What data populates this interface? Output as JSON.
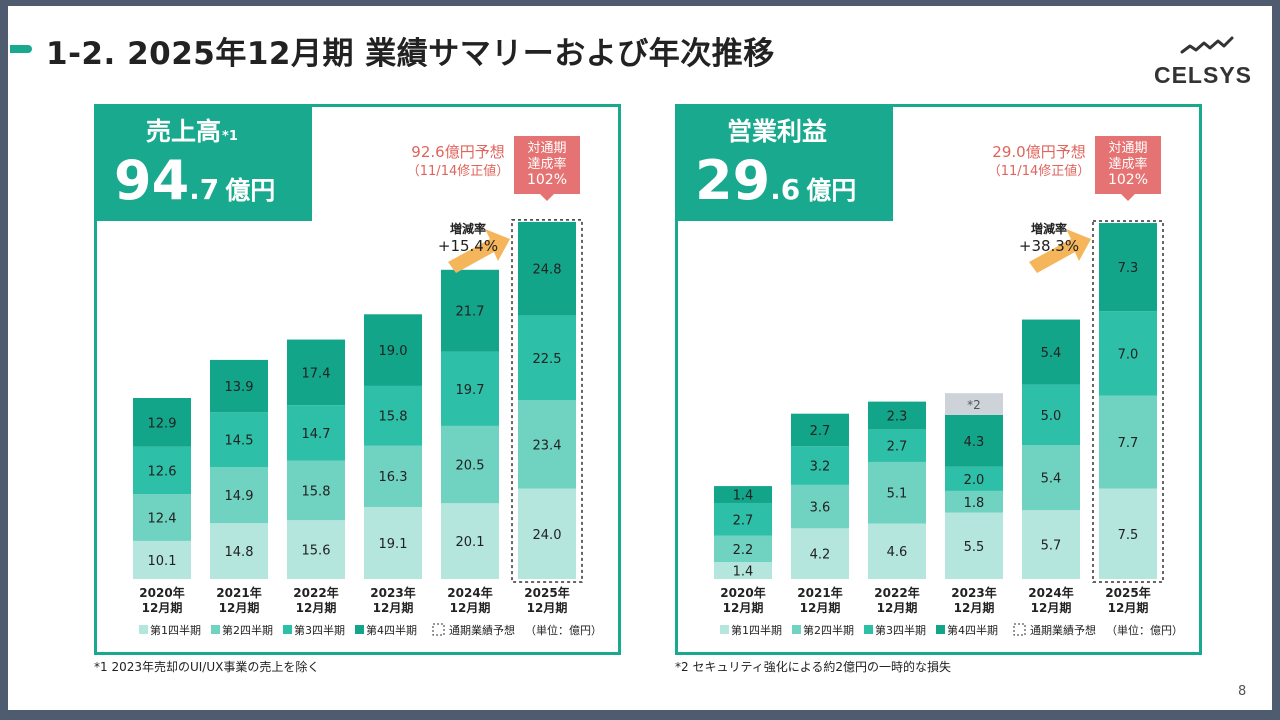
{
  "page": {
    "title": "1-2. 2025年12月期  業績サマリーおよび年次推移",
    "logo_text": "CELSYS",
    "page_number": "8"
  },
  "colors": {
    "q1": "#b4e6de",
    "q2": "#70d2c1",
    "q3": "#2dbfa7",
    "q4": "#13a58a",
    "accent": "#19a98e",
    "forecast_text": "#e0645c",
    "badge": "#e57373",
    "arrow": "#f5b55b",
    "onetime": "#cdd3d8"
  },
  "sales": {
    "kpi_label": "売上高",
    "kpi_note_mark": "*1",
    "kpi_int": "94",
    "kpi_dec": ".7",
    "kpi_unit": "億円",
    "forecast_line1": "92.6億円予想",
    "forecast_line2": "（11/14修正値）",
    "badge": [
      "対通期",
      "達成率",
      "102%"
    ],
    "growth_label": "増減率",
    "growth_value": "+15.4%",
    "footnote": "*1 2023年売却のUI/UX事業の売上を除く"
  },
  "op": {
    "kpi_label": "営業利益",
    "kpi_int": "29",
    "kpi_dec": ".6",
    "kpi_unit": "億円",
    "forecast_line1": "29.0億円予想",
    "forecast_line2": "（11/14修正値）",
    "badge": [
      "対通期",
      "達成率",
      "102%"
    ],
    "growth_label": "増減率",
    "growth_value": "+38.3%",
    "onetime_label": "*2",
    "footnote": "*2 セキュリティ強化による約2億円の一時的な損失"
  },
  "legend": {
    "items": [
      "第1四半期",
      "第2四半期",
      "第3四半期",
      "第4四半期"
    ],
    "forecast": "通期業績予想",
    "unit": "（単位：億円）"
  },
  "chart_data": [
    {
      "type": "bar",
      "stacked": true,
      "title": "売上高",
      "categories": [
        "2020年\n12月期",
        "2021年\n12月期",
        "2022年\n12月期",
        "2023年\n12月期",
        "2024年\n12月期",
        "2025年\n12月期"
      ],
      "series": [
        {
          "name": "第1四半期",
          "values": [
            10.1,
            14.8,
            15.6,
            19.1,
            20.1,
            24.0
          ]
        },
        {
          "name": "第2四半期",
          "values": [
            12.4,
            14.9,
            15.8,
            16.3,
            20.5,
            23.4
          ]
        },
        {
          "name": "第3四半期",
          "values": [
            12.6,
            14.5,
            14.7,
            15.8,
            19.7,
            22.5
          ]
        },
        {
          "name": "第4四半期",
          "values": [
            12.9,
            13.9,
            17.4,
            19.0,
            21.7,
            24.8
          ]
        }
      ],
      "forecast": 92.6,
      "ymax": 96
    },
    {
      "type": "bar",
      "stacked": true,
      "title": "営業利益",
      "categories": [
        "2020年\n12月期",
        "2021年\n12月期",
        "2022年\n12月期",
        "2023年\n12月期",
        "2024年\n12月期",
        "2025年\n12月期"
      ],
      "series": [
        {
          "name": "第1四半期",
          "values": [
            1.4,
            4.2,
            4.6,
            5.5,
            5.7,
            7.5
          ]
        },
        {
          "name": "第2四半期",
          "values": [
            2.2,
            3.6,
            5.1,
            1.8,
            5.4,
            7.7
          ]
        },
        {
          "name": "第3四半期",
          "values": [
            2.7,
            3.2,
            2.7,
            2.0,
            5.0,
            7.0
          ]
        },
        {
          "name": "第4四半期",
          "values": [
            1.4,
            2.7,
            2.3,
            4.3,
            5.4,
            7.3
          ]
        }
      ],
      "one_time_loss": {
        "category_index": 3,
        "value": 1.8,
        "label": "*2"
      },
      "forecast": 29.0,
      "ymax": 30
    }
  ]
}
